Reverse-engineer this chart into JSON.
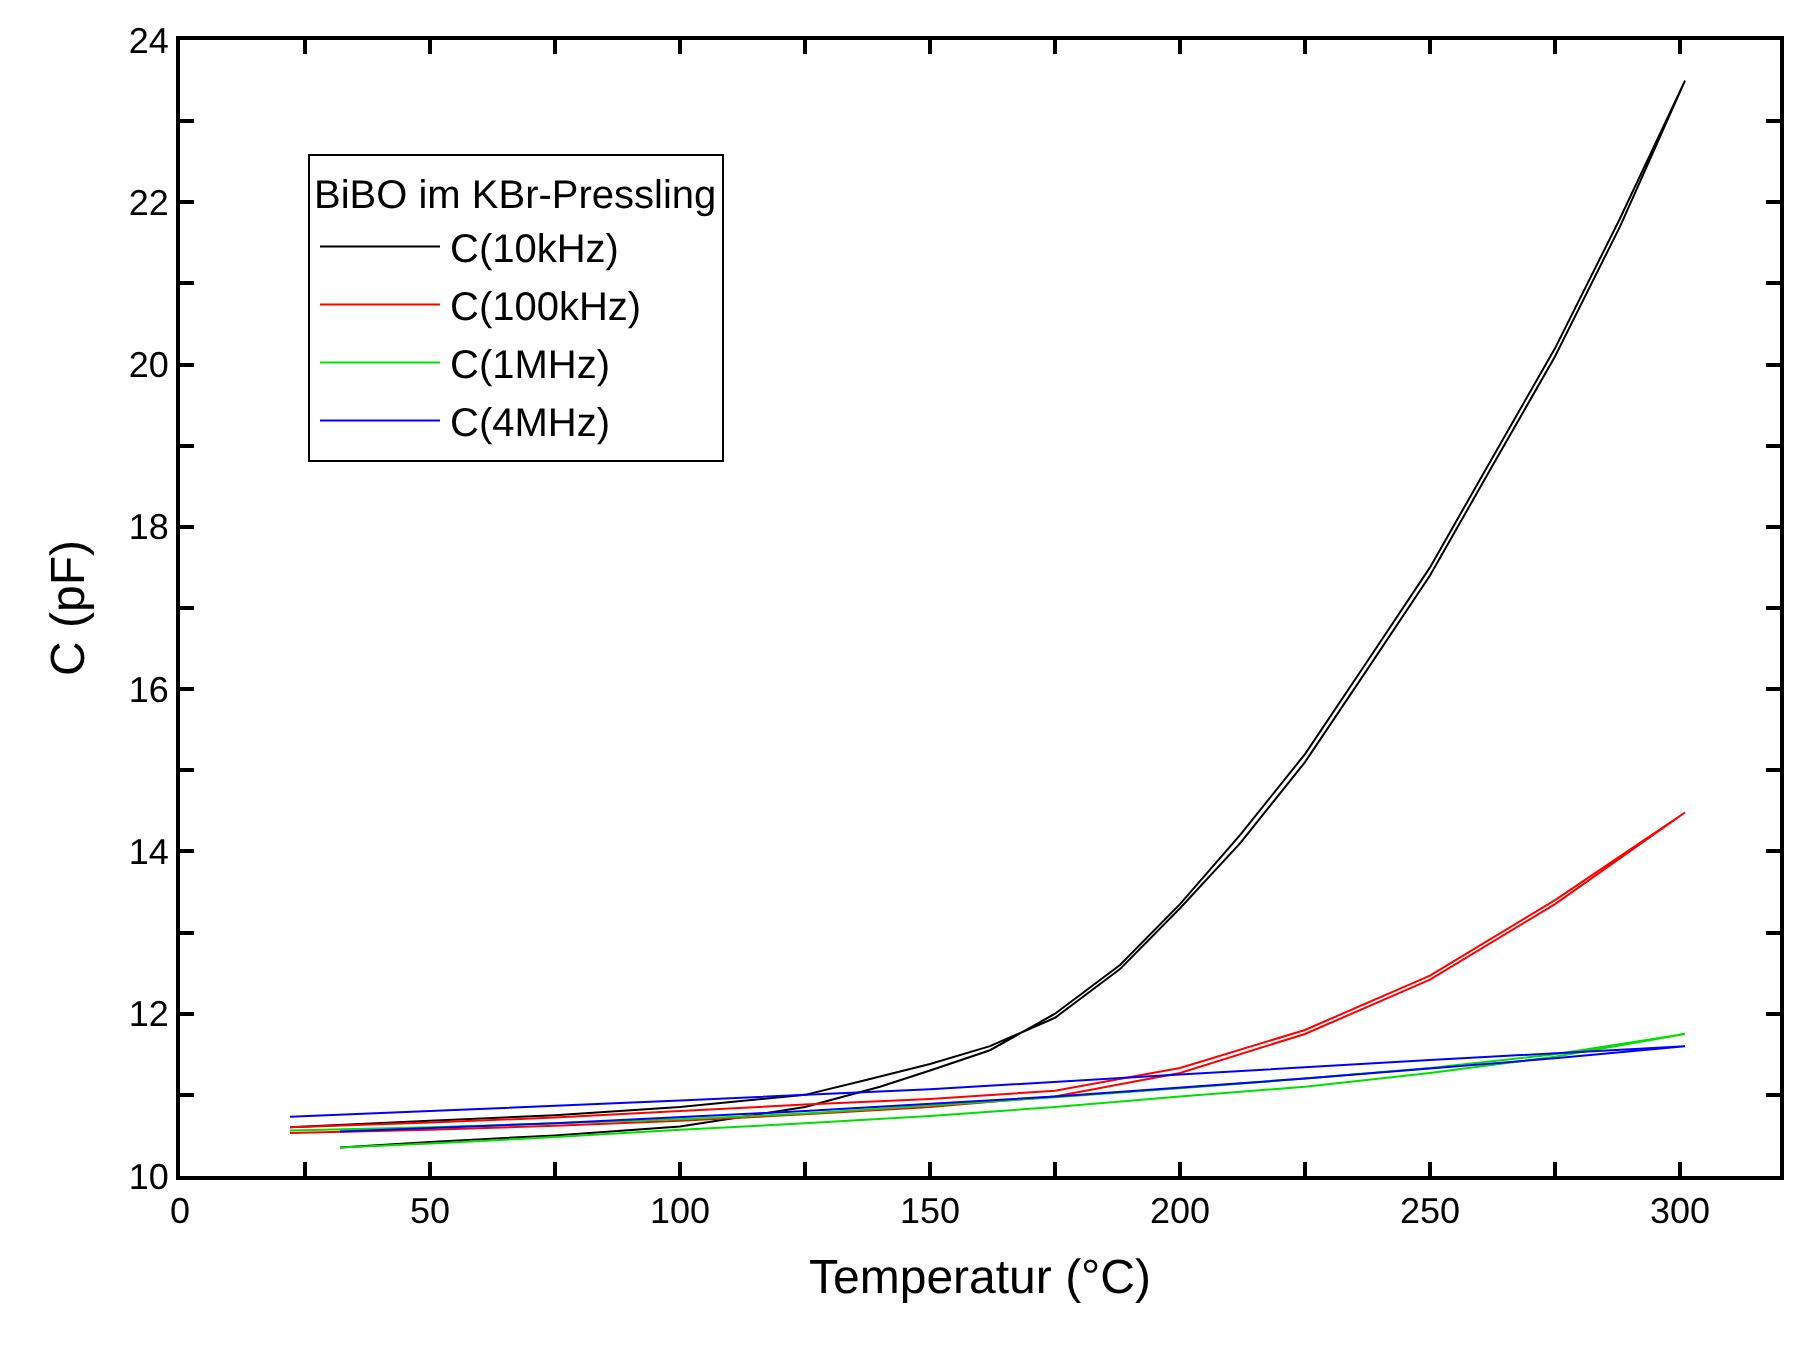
{
  "chart_data": {
    "type": "line",
    "xlabel": "Temperatur (°C)",
    "ylabel": "C (pF)",
    "legend_title": "BiBO im KBr-Pressling",
    "xlim": [
      0,
      320
    ],
    "ylim": [
      10,
      24
    ],
    "xticks": [
      0,
      {
        "value": 25,
        "label": null
      },
      50,
      {
        "value": 75,
        "label": null
      },
      100,
      {
        "value": 125,
        "label": null
      },
      150,
      {
        "value": 175,
        "label": null
      },
      200,
      {
        "value": 225,
        "label": null
      },
      250,
      {
        "value": 275,
        "label": null
      },
      300
    ],
    "yticks": [
      10,
      {
        "value": 11,
        "label": null
      },
      12,
      {
        "value": 13,
        "label": null
      },
      14,
      {
        "value": 15,
        "label": null
      },
      16,
      {
        "value": 17,
        "label": null
      },
      18,
      {
        "value": 19,
        "label": null
      },
      20,
      {
        "value": 21,
        "label": null
      },
      22,
      {
        "value": 23,
        "label": null
      },
      24
    ],
    "legend": "top left",
    "marker": "none",
    "line_style": "solid",
    "series": [
      {
        "name": "C(10kHz)",
        "color": "#000000",
        "x": [
          32,
          50,
          75,
          100,
          125,
          140,
          150,
          162,
          175,
          188,
          200,
          212,
          225,
          237,
          250,
          262,
          275,
          288,
          301,
          288,
          275,
          262,
          250,
          237,
          225,
          212,
          200,
          188,
          175,
          162,
          150,
          137,
          125,
          100,
          75,
          50,
          22
        ],
        "values": [
          10.35,
          10.42,
          10.5,
          10.61,
          10.85,
          11.1,
          11.3,
          11.55,
          12.0,
          12.6,
          13.35,
          14.2,
          15.2,
          16.3,
          17.5,
          18.8,
          20.2,
          21.8,
          23.5,
          21.7,
          20.1,
          18.7,
          17.4,
          16.2,
          15.1,
          14.1,
          13.3,
          12.55,
          11.95,
          11.6,
          11.38,
          11.18,
          11.0,
          10.85,
          10.75,
          10.68,
          10.6
        ]
      },
      {
        "name": "C(100kHz)",
        "color": "#ff0000",
        "x": [
          22,
          50,
          75,
          100,
          125,
          150,
          175,
          200,
          225,
          250,
          275,
          301,
          275,
          250,
          225,
          200,
          175,
          150,
          125,
          100,
          75,
          50,
          22
        ],
        "values": [
          10.6,
          10.66,
          10.72,
          10.8,
          10.88,
          10.95,
          11.05,
          11.33,
          11.8,
          12.47,
          13.4,
          14.48,
          13.35,
          12.42,
          11.75,
          11.27,
          10.98,
          10.85,
          10.76,
          10.68,
          10.62,
          10.57,
          10.53
        ]
      },
      {
        "name": "C(1MHz)",
        "color": "#00e000",
        "x": [
          32,
          50,
          75,
          100,
          125,
          150,
          175,
          200,
          225,
          250,
          275,
          301,
          275,
          250,
          225,
          200,
          175,
          150,
          125,
          100,
          75,
          50,
          22
        ],
        "values": [
          10.35,
          10.4,
          10.48,
          10.57,
          10.65,
          10.74,
          10.85,
          10.98,
          11.1,
          11.27,
          11.47,
          11.75,
          11.5,
          11.33,
          11.2,
          11.08,
          10.97,
          10.87,
          10.77,
          10.7,
          10.65,
          10.6,
          10.56
        ]
      },
      {
        "name": "C(4MHz)",
        "color": "#0000ff",
        "x": [
          32,
          75,
          125,
          175,
          225,
          275,
          301,
          250,
          200,
          150,
          100,
          50,
          22
        ],
        "values": [
          10.55,
          10.65,
          10.8,
          10.98,
          11.2,
          11.45,
          11.6,
          11.43,
          11.25,
          11.07,
          10.93,
          10.8,
          10.73
        ]
      }
    ]
  }
}
